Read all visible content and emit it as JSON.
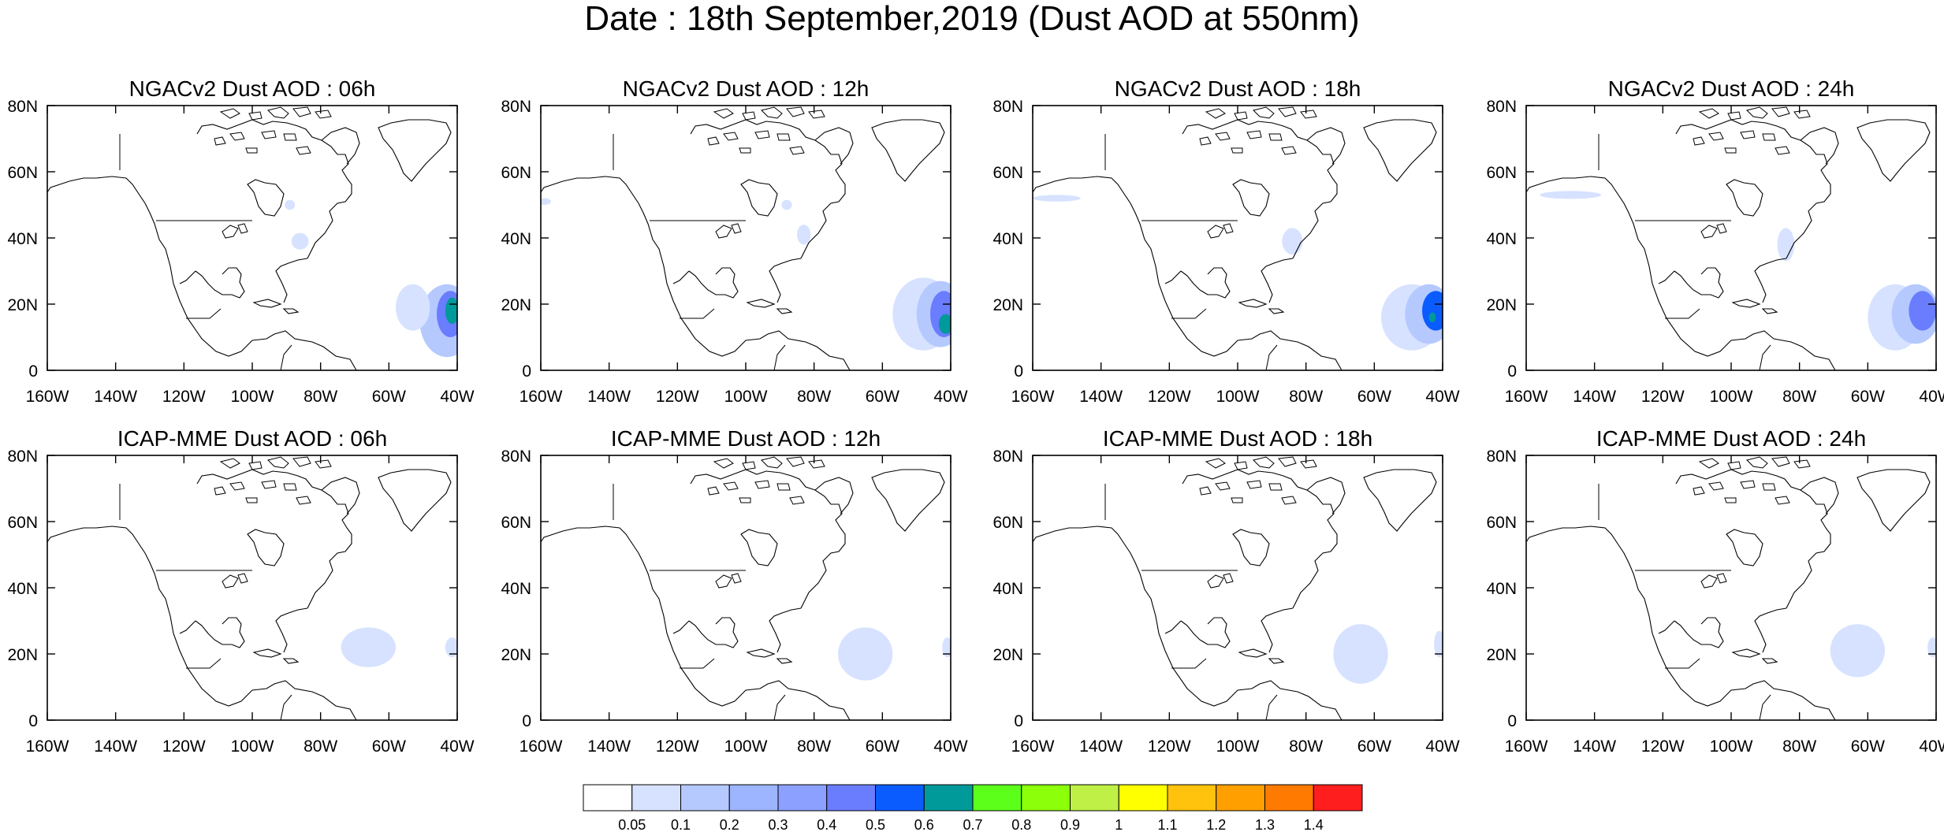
{
  "title": "Date : 18th September,2019 (Dust AOD at 550nm)",
  "lon_ticks": [
    "160W",
    "140W",
    "120W",
    "100W",
    "80W",
    "60W",
    "40W"
  ],
  "lat_ticks": [
    "0",
    "20N",
    "40N",
    "60N",
    "80N"
  ],
  "map_extent": {
    "lon_min": -160,
    "lon_max": -40,
    "lat_min": 0,
    "lat_max": 80
  },
  "colorbar": {
    "levels": [
      "0.05",
      "0.1",
      "0.2",
      "0.3",
      "0.4",
      "0.5",
      "0.6",
      "0.7",
      "0.8",
      "0.9",
      "1",
      "1.1",
      "1.2",
      "1.3",
      "1.4"
    ],
    "colors": [
      "#ffffff",
      "#d6e2ff",
      "#b5c9ff",
      "#9db5ff",
      "#8ba0ff",
      "#6a7dff",
      "#0a5cff",
      "#009a9a",
      "#5bff1a",
      "#8cff0a",
      "#bff045",
      "#ffff00",
      "#ffc20d",
      "#ff9f00",
      "#ff7a00",
      "#ff1e1e"
    ]
  },
  "panels": [
    {
      "title": "NGACv2 Dust AOD : 06h",
      "dust": [
        {
          "lat": 15,
          "lon": -43,
          "rlat": 11,
          "rlon": 8,
          "level": 2
        },
        {
          "lat": 19,
          "lon": -53,
          "rlat": 7,
          "rlon": 5,
          "level": 1
        },
        {
          "lat": 17,
          "lon": -42,
          "rlat": 7,
          "rlon": 4,
          "level": 5
        },
        {
          "lat": 18,
          "lon": -41.5,
          "rlat": 4,
          "rlon": 2,
          "level": 7
        },
        {
          "lat": 39,
          "lon": -86,
          "rlat": 2.5,
          "rlon": 2.5,
          "level": 1
        },
        {
          "lat": 50,
          "lon": -89,
          "rlat": 1.5,
          "rlon": 1.5,
          "level": 1
        }
      ]
    },
    {
      "title": "NGACv2 Dust AOD : 12h",
      "dust": [
        {
          "lat": 17,
          "lon": -48,
          "rlat": 11,
          "rlon": 9,
          "level": 1
        },
        {
          "lat": 17,
          "lon": -43,
          "rlat": 10,
          "rlon": 7,
          "level": 2
        },
        {
          "lat": 17,
          "lon": -42,
          "rlat": 7,
          "rlon": 4,
          "level": 5
        },
        {
          "lat": 14,
          "lon": -41.5,
          "rlat": 3,
          "rlon": 2,
          "level": 7
        },
        {
          "lat": 41,
          "lon": -83,
          "rlat": 3,
          "rlon": 2,
          "level": 1
        },
        {
          "lat": 50,
          "lon": -88,
          "rlat": 1.5,
          "rlon": 1.5,
          "level": 1
        },
        {
          "lat": 51,
          "lon": -159,
          "rlat": 1,
          "rlon": 2,
          "level": 1
        }
      ]
    },
    {
      "title": "NGACv2 Dust AOD : 18h",
      "dust": [
        {
          "lat": 16,
          "lon": -49,
          "rlat": 10,
          "rlon": 9,
          "level": 1
        },
        {
          "lat": 17,
          "lon": -44,
          "rlat": 9,
          "rlon": 7,
          "level": 2
        },
        {
          "lat": 18,
          "lon": -42,
          "rlat": 6,
          "rlon": 4,
          "level": 6
        },
        {
          "lat": 16,
          "lon": -43,
          "rlat": 1.5,
          "rlon": 1,
          "level": 7
        },
        {
          "lat": 39,
          "lon": -84,
          "rlat": 4,
          "rlon": 3,
          "level": 1
        },
        {
          "lat": 52,
          "lon": -153,
          "rlat": 1,
          "rlon": 7,
          "level": 1
        }
      ]
    },
    {
      "title": "NGACv2 Dust AOD : 24h",
      "dust": [
        {
          "lat": 16,
          "lon": -52,
          "rlat": 10,
          "rlon": 8,
          "level": 1
        },
        {
          "lat": 17,
          "lon": -46,
          "rlat": 9,
          "rlon": 7,
          "level": 2
        },
        {
          "lat": 18,
          "lon": -44,
          "rlat": 6,
          "rlon": 4,
          "level": 5
        },
        {
          "lat": 38,
          "lon": -84,
          "rlat": 5,
          "rlon": 2.5,
          "level": 1
        },
        {
          "lat": 53,
          "lon": -147,
          "rlat": 1.2,
          "rlon": 9,
          "level": 1
        }
      ]
    },
    {
      "title": "ICAP-MME Dust AOD : 06h",
      "dust": [
        {
          "lat": 22,
          "lon": -66,
          "rlat": 6,
          "rlon": 8,
          "level": 1
        },
        {
          "lat": 22,
          "lon": -41.5,
          "rlat": 3,
          "rlon": 2,
          "level": 1
        }
      ]
    },
    {
      "title": "ICAP-MME Dust AOD : 12h",
      "dust": [
        {
          "lat": 20,
          "lon": -65,
          "rlat": 8,
          "rlon": 8,
          "level": 1
        },
        {
          "lat": 22,
          "lon": -41,
          "rlat": 3,
          "rlon": 1.5,
          "level": 1
        }
      ]
    },
    {
      "title": "ICAP-MME Dust AOD : 18h",
      "dust": [
        {
          "lat": 20,
          "lon": -64,
          "rlat": 9,
          "rlon": 8,
          "level": 1
        },
        {
          "lat": 23,
          "lon": -41,
          "rlat": 4,
          "rlon": 1.5,
          "level": 1
        }
      ]
    },
    {
      "title": "ICAP-MME Dust AOD : 24h",
      "dust": [
        {
          "lat": 21,
          "lon": -63,
          "rlat": 8,
          "rlon": 8,
          "level": 1
        },
        {
          "lat": 22,
          "lon": -41,
          "rlat": 3,
          "rlon": 1.5,
          "level": 1
        }
      ]
    }
  ]
}
